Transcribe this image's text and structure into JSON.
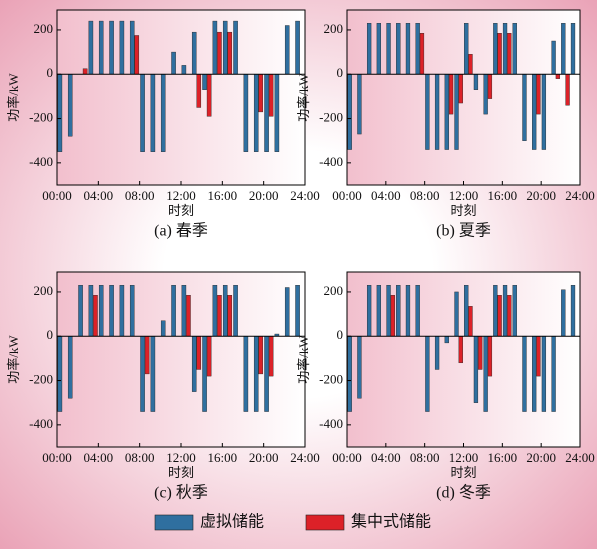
{
  "legend": [
    {
      "name": "虚拟储能",
      "color": "#2f6f9f"
    },
    {
      "name": "集中式储能",
      "color": "#dc2128"
    }
  ],
  "chart_data": [
    {
      "type": "bar",
      "caption": "(a) 春季",
      "xlabel": "时刻",
      "ylabel": "功率/kW",
      "x": [
        0.5,
        1.5,
        2.5,
        3.5,
        4.5,
        5.5,
        6.5,
        7.5,
        8.5,
        9.5,
        10.5,
        11.5,
        12.5,
        13.5,
        14.5,
        15.5,
        16.5,
        17.5,
        18.5,
        19.5,
        20.5,
        21.5,
        22.5,
        23.5
      ],
      "xlim": [
        0,
        24
      ],
      "xticks": [
        {
          "value": 0,
          "label": "00:00"
        },
        {
          "value": 4,
          "label": "04:00"
        },
        {
          "value": 8,
          "label": "08:00"
        },
        {
          "value": 12,
          "label": "12:00"
        },
        {
          "value": 16,
          "label": "16:00"
        },
        {
          "value": 20,
          "label": "20:00"
        },
        {
          "value": 24,
          "label": "24:00"
        }
      ],
      "ylim": [
        -500,
        290
      ],
      "yticks": [
        -400,
        -200,
        0,
        200
      ],
      "series": [
        {
          "values": [
            -350,
            -280,
            0,
            240,
            240,
            240,
            240,
            240,
            -350,
            -350,
            -350,
            100,
            40,
            190,
            -70,
            240,
            240,
            240,
            -350,
            -350,
            -350,
            -350,
            220,
            240
          ]
        },
        {
          "values": [
            0,
            0,
            25,
            0,
            0,
            0,
            0,
            175,
            0,
            0,
            0,
            0,
            0,
            -150,
            -190,
            190,
            190,
            0,
            0,
            -170,
            -190,
            0,
            0,
            0
          ]
        }
      ]
    },
    {
      "type": "bar",
      "caption": "(b) 夏季",
      "xlabel": "时刻",
      "ylabel": "功率/kW",
      "x": [
        0.5,
        1.5,
        2.5,
        3.5,
        4.5,
        5.5,
        6.5,
        7.5,
        8.5,
        9.5,
        10.5,
        11.5,
        12.5,
        13.5,
        14.5,
        15.5,
        16.5,
        17.5,
        18.5,
        19.5,
        20.5,
        21.5,
        22.5,
        23.5
      ],
      "xlim": [
        0,
        24
      ],
      "xticks": [
        {
          "value": 0,
          "label": "00:00"
        },
        {
          "value": 4,
          "label": "04:00"
        },
        {
          "value": 8,
          "label": "08:00"
        },
        {
          "value": 12,
          "label": "12:00"
        },
        {
          "value": 16,
          "label": "16:00"
        },
        {
          "value": 20,
          "label": "20:00"
        },
        {
          "value": 24,
          "label": "24:00"
        }
      ],
      "ylim": [
        -500,
        290
      ],
      "yticks": [
        -400,
        -200,
        0,
        200
      ],
      "series": [
        {
          "values": [
            -340,
            -270,
            230,
            230,
            230,
            230,
            230,
            230,
            -340,
            -340,
            -340,
            -340,
            230,
            -70,
            -180,
            230,
            230,
            230,
            -300,
            -340,
            -340,
            150,
            230,
            230
          ]
        },
        {
          "values": [
            0,
            0,
            0,
            0,
            0,
            0,
            0,
            185,
            0,
            0,
            -180,
            -130,
            90,
            0,
            -110,
            185,
            185,
            0,
            0,
            -180,
            0,
            -20,
            -140,
            0
          ]
        }
      ]
    },
    {
      "type": "bar",
      "caption": "(c) 秋季",
      "xlabel": "时刻",
      "ylabel": "功率/kW",
      "x": [
        0.5,
        1.5,
        2.5,
        3.5,
        4.5,
        5.5,
        6.5,
        7.5,
        8.5,
        9.5,
        10.5,
        11.5,
        12.5,
        13.5,
        14.5,
        15.5,
        16.5,
        17.5,
        18.5,
        19.5,
        20.5,
        21.5,
        22.5,
        23.5
      ],
      "xlim": [
        0,
        24
      ],
      "xticks": [
        {
          "value": 0,
          "label": "00:00"
        },
        {
          "value": 4,
          "label": "04:00"
        },
        {
          "value": 8,
          "label": "08:00"
        },
        {
          "value": 12,
          "label": "12:00"
        },
        {
          "value": 16,
          "label": "16:00"
        },
        {
          "value": 20,
          "label": "20:00"
        },
        {
          "value": 24,
          "label": "24:00"
        }
      ],
      "ylim": [
        -500,
        290
      ],
      "yticks": [
        -400,
        -200,
        0,
        200
      ],
      "series": [
        {
          "values": [
            -340,
            -280,
            230,
            230,
            230,
            230,
            230,
            230,
            -340,
            -340,
            70,
            230,
            230,
            -250,
            -340,
            230,
            230,
            230,
            -340,
            -340,
            -340,
            10,
            220,
            230
          ]
        },
        {
          "values": [
            0,
            0,
            0,
            185,
            0,
            0,
            0,
            0,
            -170,
            0,
            0,
            0,
            185,
            -150,
            -180,
            185,
            185,
            0,
            0,
            -170,
            -180,
            0,
            0,
            0
          ]
        }
      ]
    },
    {
      "type": "bar",
      "caption": "(d) 冬季",
      "xlabel": "时刻",
      "ylabel": "功率/kW",
      "x": [
        0.5,
        1.5,
        2.5,
        3.5,
        4.5,
        5.5,
        6.5,
        7.5,
        8.5,
        9.5,
        10.5,
        11.5,
        12.5,
        13.5,
        14.5,
        15.5,
        16.5,
        17.5,
        18.5,
        19.5,
        20.5,
        21.5,
        22.5,
        23.5
      ],
      "xlim": [
        0,
        24
      ],
      "xticks": [
        {
          "value": 0,
          "label": "00:00"
        },
        {
          "value": 4,
          "label": "04:00"
        },
        {
          "value": 8,
          "label": "08:00"
        },
        {
          "value": 12,
          "label": "12:00"
        },
        {
          "value": 16,
          "label": "16:00"
        },
        {
          "value": 20,
          "label": "20:00"
        },
        {
          "value": 24,
          "label": "24:00"
        }
      ],
      "ylim": [
        -500,
        290
      ],
      "yticks": [
        -400,
        -200,
        0,
        200
      ],
      "series": [
        {
          "values": [
            -340,
            -280,
            230,
            230,
            230,
            230,
            230,
            230,
            -340,
            -150,
            -30,
            200,
            230,
            -300,
            -340,
            230,
            230,
            230,
            -340,
            -340,
            -340,
            -340,
            210,
            230
          ]
        },
        {
          "values": [
            0,
            0,
            0,
            0,
            185,
            0,
            0,
            0,
            0,
            0,
            0,
            -120,
            135,
            -150,
            -180,
            185,
            185,
            0,
            0,
            -180,
            0,
            0,
            0,
            0
          ]
        }
      ]
    }
  ]
}
